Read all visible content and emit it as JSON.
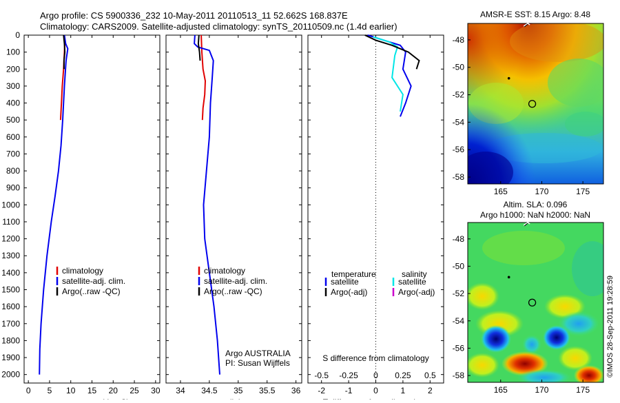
{
  "header": {
    "line1": "Argo profile: CS 5900336_232 10-May-2011 20110513_11 52.662S 168.837E",
    "line2": "Climatology: CARS2009. Satellite-adjusted climatology: synTS_20110509.nc (1.4d earlier)"
  },
  "watermark": "©IMOS 28-Sep-2011 19:28:59",
  "colors": {
    "climatology": "#e00000",
    "satellite": "#0000ee",
    "argo": "#000000",
    "salinity_satellite": "#00e6e6",
    "salinity_argo": "#cc00cc"
  },
  "chart_data": [
    {
      "type": "line",
      "id": "temperature",
      "xlabel": "temperature (deg C)",
      "xlim": [
        -1,
        31
      ],
      "xticks": [
        0,
        5,
        10,
        15,
        20,
        25,
        30
      ],
      "ylim": [
        0,
        2050
      ],
      "yticks": [
        0,
        100,
        200,
        300,
        400,
        500,
        600,
        700,
        800,
        900,
        1000,
        1100,
        1200,
        1300,
        1400,
        1500,
        1600,
        1700,
        1800,
        1900,
        2000
      ],
      "legend": [
        "climatology",
        "satellite-adj. clim.",
        "Argo(..raw -QC)"
      ],
      "series": [
        {
          "name": "climatology",
          "color": "#e00000",
          "points": [
            [
              8.6,
              50
            ],
            [
              8.5,
              100
            ],
            [
              8.3,
              200
            ],
            [
              8.0,
              300
            ],
            [
              7.8,
              400
            ],
            [
              7.6,
              500
            ]
          ]
        },
        {
          "name": "satellite-adj. clim.",
          "color": "#0000ee",
          "points": [
            [
              8.5,
              0
            ],
            [
              8.8,
              50
            ],
            [
              9.3,
              80
            ],
            [
              8.9,
              150
            ],
            [
              8.5,
              300
            ],
            [
              8.1,
              500
            ],
            [
              7.7,
              650
            ],
            [
              7.1,
              800
            ],
            [
              6.3,
              950
            ],
            [
              5.4,
              1100
            ],
            [
              4.4,
              1300
            ],
            [
              3.6,
              1500
            ],
            [
              3.0,
              1700
            ],
            [
              2.7,
              1850
            ],
            [
              2.6,
              2000
            ]
          ]
        },
        {
          "name": "Argo(..raw -QC)",
          "color": "#000000",
          "points": [
            [
              8.3,
              0
            ],
            [
              8.5,
              50
            ],
            [
              8.6,
              100
            ],
            [
              8.4,
              150
            ],
            [
              8.4,
              200
            ]
          ]
        }
      ]
    },
    {
      "type": "line",
      "id": "salinity",
      "xlabel": "salinity",
      "xlim": [
        33.75,
        36.1
      ],
      "xticks": [
        34,
        34.5,
        35,
        35.5,
        36
      ],
      "ylim": [
        0,
        2050
      ],
      "legend": [
        "climatology",
        "satellite-adj. clim.",
        "Argo(..raw -QC)"
      ],
      "annotations": [
        "Argo AUSTRALIA",
        "PI: Susan Wijffels"
      ],
      "series": [
        {
          "name": "climatology",
          "color": "#e00000",
          "points": [
            [
              34.36,
              0
            ],
            [
              34.37,
              100
            ],
            [
              34.39,
              200
            ],
            [
              34.43,
              270
            ],
            [
              34.42,
              350
            ],
            [
              34.39,
              430
            ],
            [
              34.38,
              500
            ]
          ]
        },
        {
          "name": "satellite-adj. clim.",
          "color": "#0000ee",
          "points": [
            [
              34.25,
              0
            ],
            [
              34.24,
              50
            ],
            [
              34.3,
              70
            ],
            [
              34.5,
              90
            ],
            [
              34.57,
              150
            ],
            [
              34.55,
              250
            ],
            [
              34.52,
              400
            ],
            [
              34.5,
              600
            ],
            [
              34.45,
              800
            ],
            [
              34.4,
              1000
            ],
            [
              34.42,
              1200
            ],
            [
              34.5,
              1400
            ],
            [
              34.58,
              1600
            ],
            [
              34.64,
              1800
            ],
            [
              34.68,
              2000
            ]
          ]
        },
        {
          "name": "Argo(..raw -QC)",
          "color": "#000000",
          "points": [
            [
              34.32,
              0
            ],
            [
              34.31,
              50
            ],
            [
              34.33,
              100
            ],
            [
              34.34,
              150
            ]
          ]
        }
      ]
    },
    {
      "type": "line",
      "id": "difference",
      "xlabel": "T difference from climatology",
      "xlabel2": "S difference from climatology",
      "xlim": [
        -2.5,
        2.5
      ],
      "xticks": [
        -2,
        -1,
        0,
        1,
        2
      ],
      "xticks2": [
        "-0.5",
        "-0.25",
        "0",
        "0.25",
        "0.5"
      ],
      "ylim": [
        0,
        2050
      ],
      "legend_headers": [
        "temperature",
        "salinity"
      ],
      "legend": [
        "satellite",
        "Argo(-adj)",
        "satellite",
        "Argo(-adj)"
      ],
      "series": [
        {
          "name": "satellite",
          "color": "#0000ee",
          "points": [
            [
              -0.3,
              0
            ],
            [
              0.3,
              30
            ],
            [
              0.9,
              60
            ],
            [
              1.1,
              100
            ],
            [
              1.0,
              200
            ],
            [
              1.3,
              300
            ],
            [
              1.1,
              400
            ],
            [
              0.9,
              480
            ]
          ]
        },
        {
          "name": "satellite",
          "color": "#00e6e6",
          "points": [
            [
              -0.1,
              10
            ],
            [
              0.5,
              40
            ],
            [
              0.8,
              70
            ],
            [
              0.7,
              120
            ],
            [
              0.6,
              250
            ],
            [
              1.0,
              350
            ],
            [
              0.9,
              450
            ]
          ]
        },
        {
          "name": "Argo(-adj)",
          "color": "#000000",
          "points": [
            [
              -0.4,
              0
            ],
            [
              0.0,
              30
            ],
            [
              0.6,
              60
            ],
            [
              1.2,
              100
            ],
            [
              1.6,
              150
            ],
            [
              1.5,
              200
            ]
          ]
        }
      ]
    }
  ],
  "maps": [
    {
      "id": "sst",
      "title": "AMSR-E SST: 8.15 Argo: 8.48",
      "xticks": [
        165,
        170,
        175
      ],
      "yticks": [
        -48,
        -50,
        -52,
        -54,
        -56,
        -58
      ],
      "xlim": [
        161,
        177.5
      ],
      "ylim": [
        -58.5,
        -46.8
      ],
      "argo_point": [
        168.837,
        -52.662
      ]
    },
    {
      "id": "sla",
      "title1": "Altim. SLA: 0.096",
      "title2": "Argo h1000: NaN h2000: NaN",
      "xticks": [
        165,
        170,
        175
      ],
      "yticks": [
        -48,
        -50,
        -52,
        -54,
        -56,
        -58
      ],
      "xlim": [
        161,
        177.5
      ],
      "ylim": [
        -58.5,
        -46.8
      ],
      "argo_point": [
        168.837,
        -52.662
      ]
    }
  ]
}
